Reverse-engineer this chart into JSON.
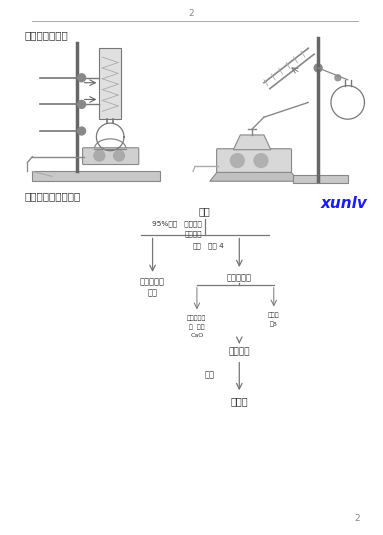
{
  "page_num": "2",
  "section6_title": "六、实验装置图",
  "section7_title": "七、实验流程示意：",
  "watermark": "xunlv",
  "watermark_color": "#1a1aff",
  "bg_color": "#ffffff",
  "text_color": "#333333",
  "line_color": "#777777",
  "flow": {
    "tea": "茶叶",
    "label_left1": "95%乙醇   三角烧杯",
    "label_center": "加热回流",
    "label_l2": "趁热",
    "label_r2": "过滤 4",
    "left_node": "乙醇溶出液",
    "left_sub": "弃掉",
    "right_node": "液固提取液",
    "sub_left1": "等三氯化铁",
    "sub_left2": "盐  加入",
    "sub_left3": "CaO",
    "sub_right1": "加十倍",
    "sub_right2": "汉8",
    "phase": "相液萸取",
    "evap": "蜀发",
    "product": "茶多酌"
  }
}
